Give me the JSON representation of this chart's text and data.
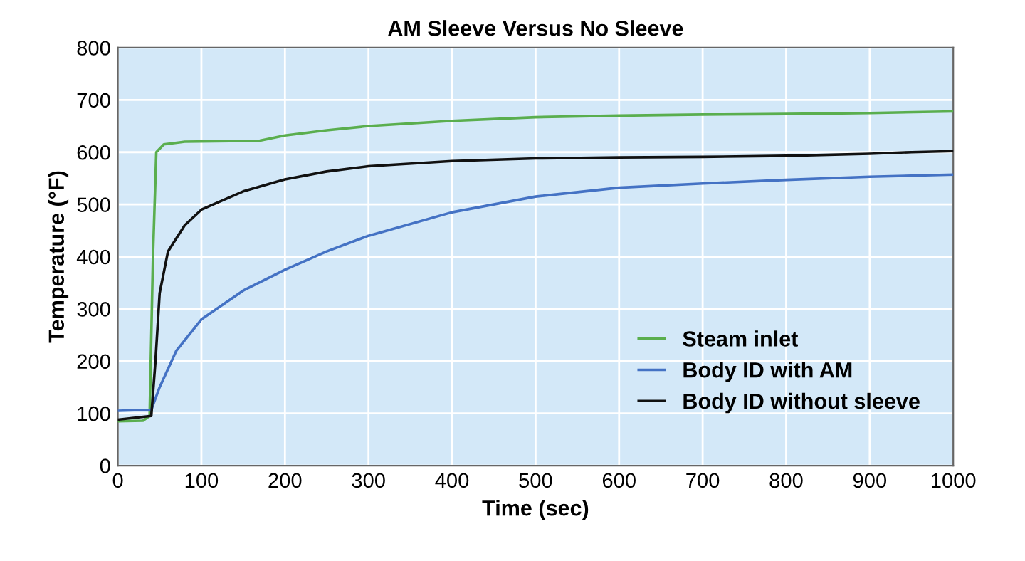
{
  "chart_data": {
    "type": "line",
    "title": "AM Sleeve Versus No Sleeve",
    "xlabel": "Time (sec)",
    "ylabel": "Temperature (°F)",
    "xlim": [
      0,
      1000
    ],
    "xticks": [
      0,
      100,
      200,
      300,
      400,
      500,
      600,
      700,
      800,
      900,
      1000
    ],
    "ylim": [
      0,
      800
    ],
    "yticks": [
      0,
      100,
      200,
      300,
      400,
      500,
      600,
      700,
      800
    ],
    "grid": true,
    "legend": "bottom right",
    "marker": "none",
    "line_style": "solid",
    "series": [
      {
        "name": "Steam inlet",
        "color": "#5aae4e",
        "x": [
          0,
          30,
          38,
          42,
          46,
          55,
          80,
          170,
          200,
          250,
          300,
          400,
          500,
          600,
          700,
          800,
          900,
          1000
        ],
        "values": [
          85,
          86,
          95,
          400,
          600,
          615,
          620,
          622,
          632,
          642,
          650,
          660,
          667,
          670,
          672,
          673,
          675,
          678
        ]
      },
      {
        "name": "Body ID with AM",
        "color": "#4472c4",
        "x": [
          0,
          40,
          50,
          70,
          100,
          150,
          200,
          250,
          300,
          400,
          500,
          600,
          700,
          800,
          900,
          1000
        ],
        "values": [
          105,
          107,
          150,
          220,
          280,
          335,
          375,
          410,
          440,
          485,
          515,
          532,
          540,
          547,
          553,
          557
        ]
      },
      {
        "name": "Body ID without sleeve",
        "color": "#111111",
        "x": [
          0,
          40,
          45,
          50,
          60,
          80,
          100,
          150,
          200,
          250,
          300,
          400,
          500,
          600,
          700,
          800,
          900,
          950,
          1000
        ],
        "values": [
          88,
          95,
          200,
          330,
          410,
          460,
          490,
          525,
          548,
          563,
          573,
          583,
          588,
          590,
          591,
          593,
          597,
          600,
          602
        ]
      }
    ]
  }
}
